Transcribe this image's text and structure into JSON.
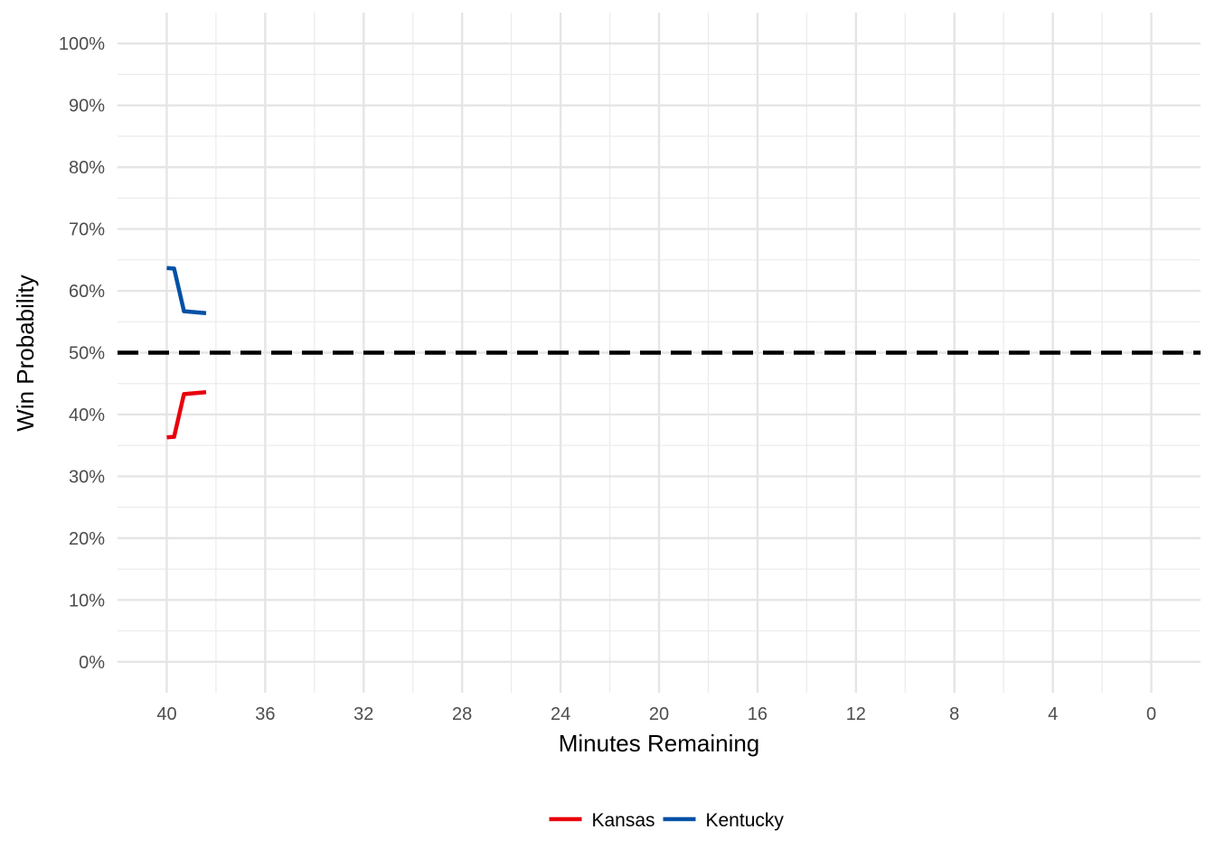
{
  "chart_data": {
    "type": "line",
    "title": "",
    "xlabel": "Minutes Remaining",
    "ylabel": "Win Probability",
    "xlim": [
      42,
      -2
    ],
    "ylim": [
      -0.05,
      1.05
    ],
    "x_reversed": true,
    "x_ticks": [
      40,
      36,
      32,
      28,
      24,
      20,
      16,
      12,
      8,
      4,
      0
    ],
    "x_tick_labels": [
      "40",
      "36",
      "32",
      "28",
      "24",
      "20",
      "16",
      "12",
      "8",
      "4",
      "0"
    ],
    "y_ticks": [
      0,
      0.1,
      0.2,
      0.3,
      0.4,
      0.5,
      0.6,
      0.7,
      0.8,
      0.9,
      1.0
    ],
    "y_tick_labels": [
      "0%",
      "10%",
      "20%",
      "30%",
      "40%",
      "50%",
      "60%",
      "70%",
      "80%",
      "90%",
      "100%"
    ],
    "grid": true,
    "legend_position": "bottom",
    "reference_line": {
      "y": 0.5,
      "style": "dashed",
      "color": "#000000"
    },
    "series": [
      {
        "name": "Kansas",
        "color": "#e8000b",
        "x": [
          40,
          39.7,
          39.3,
          38.4
        ],
        "y": [
          0.363,
          0.364,
          0.433,
          0.436
        ]
      },
      {
        "name": "Kentucky",
        "color": "#0051a5",
        "x": [
          40,
          39.7,
          39.3,
          38.4
        ],
        "y": [
          0.637,
          0.636,
          0.567,
          0.564
        ]
      }
    ]
  }
}
